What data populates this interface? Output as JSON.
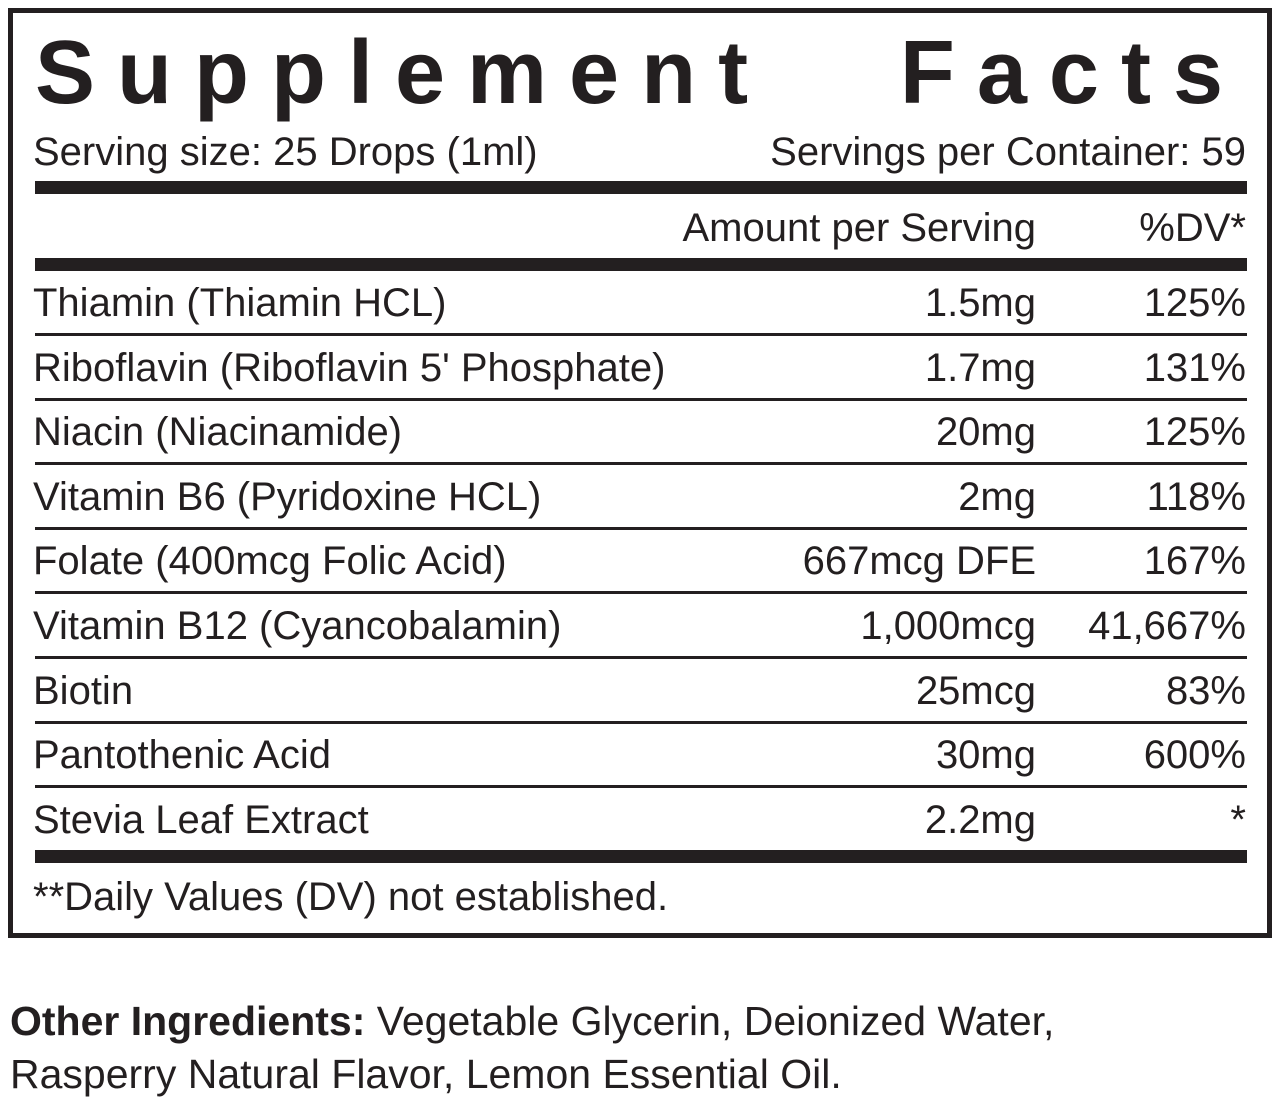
{
  "label": {
    "title": "Supplement Facts",
    "serving_size": "Serving size: 25 Drops (1ml)",
    "servings_per_container": "Servings per Container: 59",
    "header": {
      "amount": "Amount per Serving",
      "dv": "%DV*"
    },
    "rows": [
      [
        "Thiamin (Thiamin HCL)",
        "1.5mg",
        "125%"
      ],
      [
        "Riboflavin (Riboflavin 5' Phosphate)",
        "1.7mg",
        "131%"
      ],
      [
        "Niacin (Niacinamide)",
        "20mg",
        "125%"
      ],
      [
        "Vitamin B6 (Pyridoxine HCL)",
        "2mg",
        "118%"
      ],
      [
        "Folate (400mcg Folic Acid)",
        "667mcg DFE",
        "167%"
      ],
      [
        "Vitamin B12 (Cyancobalamin)",
        "1,000mcg",
        "41,667%"
      ],
      [
        "Biotin",
        "25mcg",
        "83%"
      ],
      [
        "Pantothenic Acid",
        "30mg",
        "600%"
      ],
      [
        "Stevia Leaf Extract",
        "2.2mg",
        "*"
      ]
    ],
    "footnote": "**Daily Values (DV) not established."
  },
  "other_ingredients": {
    "label": "Other Ingredients:",
    "text": "Vegetable Glycerin, Deionized Water, Rasperry Natural Flavor, Lemon Essential Oil."
  }
}
